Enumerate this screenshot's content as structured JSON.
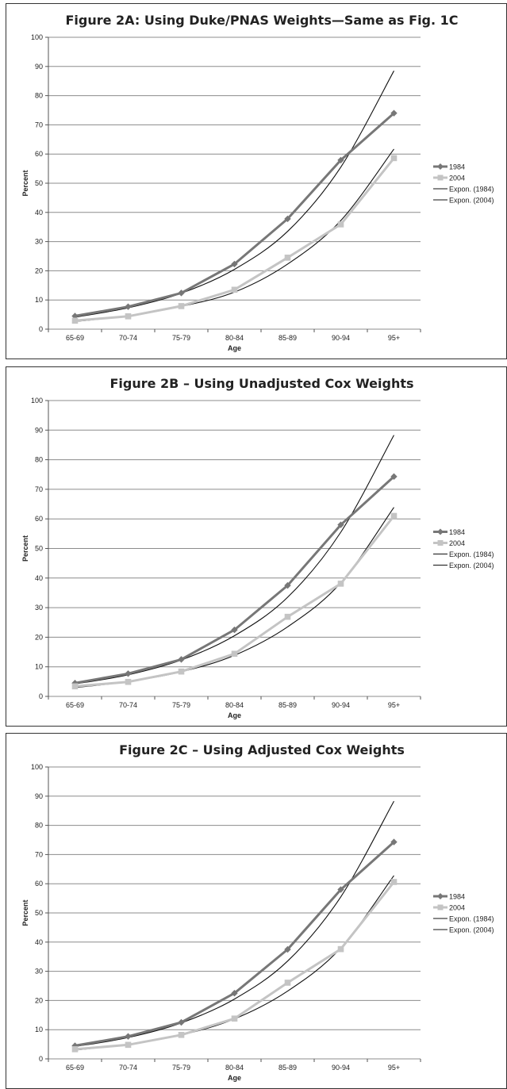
{
  "colors": {
    "series_1984": "#777777",
    "series_2004": "#c4c4c4",
    "trend": "#111111",
    "grid": "#8c8c8c"
  },
  "chart_data": [
    {
      "type": "line",
      "title": "Figure 2A: Using Duke/PNAS Weights—Same as Fig. 1C",
      "xlabel": "Age",
      "ylabel": "Percent",
      "categories": [
        "65-69",
        "70-74",
        "75-79",
        "80-84",
        "85-89",
        "90-94",
        "95+"
      ],
      "ylim": [
        0,
        100
      ],
      "yticks": [
        0,
        10,
        20,
        30,
        40,
        50,
        60,
        70,
        80,
        90,
        100
      ],
      "grid": true,
      "legend_position": "right",
      "series": [
        {
          "name": "1984",
          "marker": "diamond",
          "values": [
            4.5,
            7.7,
            12.4,
            22.3,
            37.8,
            57.9,
            74.0
          ]
        },
        {
          "name": "2004",
          "marker": "square",
          "values": [
            2.9,
            4.4,
            7.9,
            13.5,
            24.5,
            35.9,
            58.6
          ]
        }
      ],
      "trendlines": [
        {
          "name": "Expon. (1984)",
          "of": "1984",
          "values": [
            4.1,
            7.3,
            12.3,
            20.5,
            33.5,
            55.5,
            88.5
          ]
        },
        {
          "name": "Expon. (2004)",
          "of": "2004",
          "values": [
            2.6,
            4.6,
            7.8,
            12.7,
            22.3,
            37.2,
            61.7
          ]
        }
      ]
    },
    {
      "type": "line",
      "title": "Figure 2B – Using Unadjusted Cox Weights",
      "xlabel": "Age",
      "ylabel": "Percent",
      "categories": [
        "65-69",
        "70-74",
        "75-79",
        "80-84",
        "85-89",
        "90-94",
        "95+"
      ],
      "ylim": [
        0,
        100
      ],
      "yticks": [
        0,
        10,
        20,
        30,
        40,
        50,
        60,
        70,
        80,
        90,
        100
      ],
      "grid": true,
      "legend_position": "right",
      "series": [
        {
          "name": "1984",
          "marker": "diamond",
          "values": [
            4.5,
            7.7,
            12.5,
            22.5,
            37.5,
            58.0,
            74.3
          ]
        },
        {
          "name": "2004",
          "marker": "square",
          "values": [
            3.4,
            4.9,
            8.4,
            14.4,
            26.9,
            38.1,
            61.0
          ]
        }
      ],
      "trendlines": [
        {
          "name": "Expon. (1984)",
          "of": "1984",
          "values": [
            4.2,
            7.3,
            12.3,
            20.5,
            33.5,
            55.5,
            88.3
          ]
        },
        {
          "name": "Expon. (2004)",
          "of": "2004",
          "values": [
            3.0,
            5.0,
            8.3,
            13.9,
            23.5,
            38.4,
            63.9
          ]
        }
      ]
    },
    {
      "type": "line",
      "title": "Figure 2C – Using Adjusted Cox Weights",
      "xlabel": "Age",
      "ylabel": "Percent",
      "categories": [
        "65-69",
        "70-74",
        "75-79",
        "80-84",
        "85-89",
        "90-94",
        "95+"
      ],
      "ylim": [
        0,
        100
      ],
      "yticks": [
        0,
        10,
        20,
        30,
        40,
        50,
        60,
        70,
        80,
        90,
        100
      ],
      "grid": true,
      "legend_position": "right",
      "series": [
        {
          "name": "1984",
          "marker": "diamond",
          "values": [
            4.5,
            7.7,
            12.5,
            22.5,
            37.5,
            58.0,
            74.3
          ]
        },
        {
          "name": "2004",
          "marker": "square",
          "values": [
            3.3,
            4.8,
            8.2,
            13.8,
            26.1,
            37.6,
            60.6
          ]
        }
      ],
      "trendlines": [
        {
          "name": "Expon. (1984)",
          "of": "1984",
          "values": [
            4.2,
            7.3,
            12.3,
            20.5,
            33.5,
            55.5,
            88.3
          ]
        },
        {
          "name": "Expon. (2004)",
          "of": "2004",
          "values": [
            3.0,
            5.0,
            8.2,
            13.7,
            23.2,
            38.0,
            62.8
          ]
        }
      ]
    }
  ]
}
